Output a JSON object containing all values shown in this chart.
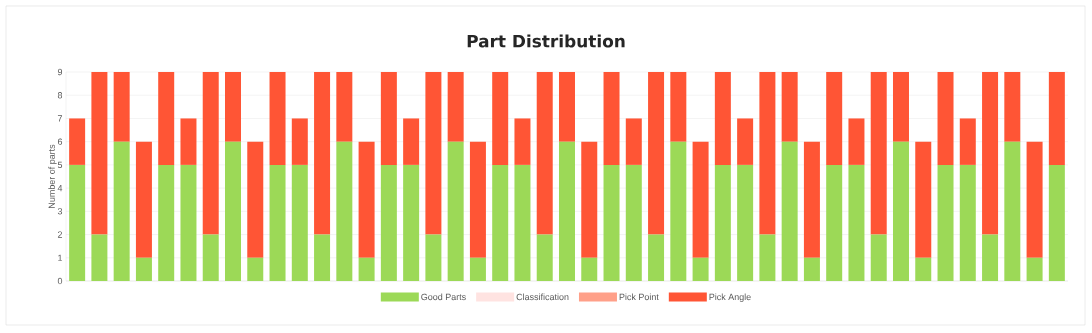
{
  "chart_data": {
    "type": "bar",
    "title": "Part Distribution",
    "ylabel": "Number of parts",
    "stacked": true,
    "categories": [
      null,
      null,
      null,
      null,
      null,
      null,
      null,
      null,
      null,
      null,
      null,
      null,
      null,
      null,
      null,
      null,
      null,
      null,
      null,
      null,
      null,
      null,
      null,
      null,
      null,
      null,
      null,
      null,
      null,
      null,
      null,
      null,
      null,
      null,
      null,
      null,
      null,
      null,
      null,
      null,
      null,
      null,
      null,
      null,
      null
    ],
    "series": [
      {
        "name": "Good Parts",
        "color": "#9cd957",
        "values": [
          5,
          2,
          6,
          1,
          5,
          5,
          2,
          6,
          1,
          5,
          5,
          2,
          6,
          1,
          5,
          5,
          2,
          6,
          1,
          5,
          5,
          2,
          6,
          1,
          5,
          5,
          2,
          6,
          1,
          5,
          5,
          2,
          6,
          1,
          5,
          5,
          2,
          6,
          1,
          5,
          5,
          2,
          6,
          1,
          5
        ]
      },
      {
        "name": "Classification",
        "color": "#ffe3e1",
        "values": [
          0,
          0,
          0,
          0,
          0,
          0,
          0,
          0,
          0,
          0,
          0,
          0,
          0,
          0,
          0,
          0,
          0,
          0,
          0,
          0,
          0,
          0,
          0,
          0,
          0,
          0,
          0,
          0,
          0,
          0,
          0,
          0,
          0,
          0,
          0,
          0,
          0,
          0,
          0,
          0,
          0,
          0,
          0,
          0,
          0
        ]
      },
      {
        "name": "Pick Point",
        "color": "#ffa089",
        "values": [
          0,
          0,
          0,
          0,
          0,
          0,
          0,
          0,
          0,
          0,
          0,
          0,
          0,
          0,
          0,
          0,
          0,
          0,
          0,
          0,
          0,
          0,
          0,
          0,
          0,
          0,
          0,
          0,
          0,
          0,
          0,
          0,
          0,
          0,
          0,
          0,
          0,
          0,
          0,
          0,
          0,
          0,
          0,
          0,
          0
        ]
      },
      {
        "name": "Pick Angle",
        "color": "#ff5535",
        "values": [
          2,
          7,
          3,
          5,
          4,
          2,
          7,
          3,
          5,
          4,
          2,
          7,
          3,
          5,
          4,
          2,
          7,
          3,
          5,
          4,
          2,
          7,
          3,
          5,
          4,
          2,
          7,
          3,
          5,
          4,
          2,
          7,
          3,
          5,
          4,
          2,
          7,
          3,
          5,
          4,
          2,
          7,
          3,
          5,
          4
        ]
      }
    ],
    "ylim": [
      0,
      9
    ],
    "yticks": [
      0,
      1,
      2,
      3,
      4,
      5,
      6,
      7,
      8,
      9
    ],
    "grid": "y",
    "legend": "bottom"
  }
}
